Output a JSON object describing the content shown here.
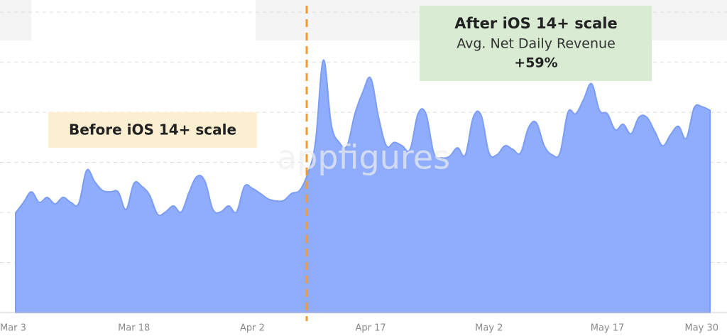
{
  "chart_data": {
    "type": "area",
    "categories": [
      "Mar 3",
      null,
      null,
      null,
      null,
      null,
      null,
      null,
      null,
      null,
      null,
      null,
      null,
      null,
      null,
      "Mar 18",
      null,
      null,
      null,
      null,
      null,
      null,
      null,
      null,
      null,
      null,
      null,
      null,
      null,
      null,
      "Apr 2",
      null,
      null,
      null,
      null,
      null,
      null,
      null,
      null,
      null,
      null,
      null,
      null,
      null,
      null,
      "Apr 17",
      null,
      null,
      null,
      null,
      null,
      null,
      null,
      null,
      null,
      null,
      null,
      null,
      null,
      null,
      "May 2",
      null,
      null,
      null,
      null,
      null,
      null,
      null,
      null,
      null,
      null,
      null,
      null,
      null,
      null,
      "May 17",
      null,
      null,
      null,
      null,
      null,
      null,
      null,
      null,
      null,
      null,
      null,
      null,
      "May 30"
    ],
    "values": [
      1.99,
      2.2,
      2.41,
      2.2,
      2.3,
      2.17,
      2.3,
      2.2,
      2.18,
      2.84,
      2.62,
      2.44,
      2.41,
      2.41,
      2.06,
      2.58,
      2.52,
      2.34,
      1.96,
      2.01,
      2.13,
      2.01,
      2.41,
      2.72,
      2.62,
      2.06,
      2.01,
      2.13,
      2.01,
      2.52,
      2.48,
      2.38,
      2.27,
      2.23,
      2.24,
      2.38,
      2.44,
      2.77,
      3.4,
      5.04,
      3.76,
      3.4,
      3.33,
      3.97,
      4.4,
      4.68,
      3.9,
      3.33,
      3.4,
      3.33,
      3.26,
      3.97,
      3.97,
      3.19,
      3.09,
      3.12,
      3.29,
      3.15,
      3.9,
      3.94,
      3.19,
      3.15,
      3.33,
      3.26,
      3.19,
      3.69,
      3.79,
      3.33,
      3.15,
      3.19,
      4.0,
      3.97,
      4.26,
      4.57,
      4.04,
      3.97,
      3.65,
      3.76,
      3.57,
      3.9,
      3.9,
      3.62,
      3.33,
      3.55,
      3.72,
      3.48,
      4.09,
      4.11,
      4.04
    ],
    "color": "#8fadfc",
    "ylim": [
      0,
      6.2
    ],
    "yticks": [
      1,
      2,
      3,
      4,
      5,
      6
    ],
    "grid": true,
    "watermark": "appfigures",
    "annotations": [
      "Before iOS 14+ scale",
      "After iOS 14+ scale",
      "Avg. Net Daily Revenue",
      "+59%"
    ]
  }
}
